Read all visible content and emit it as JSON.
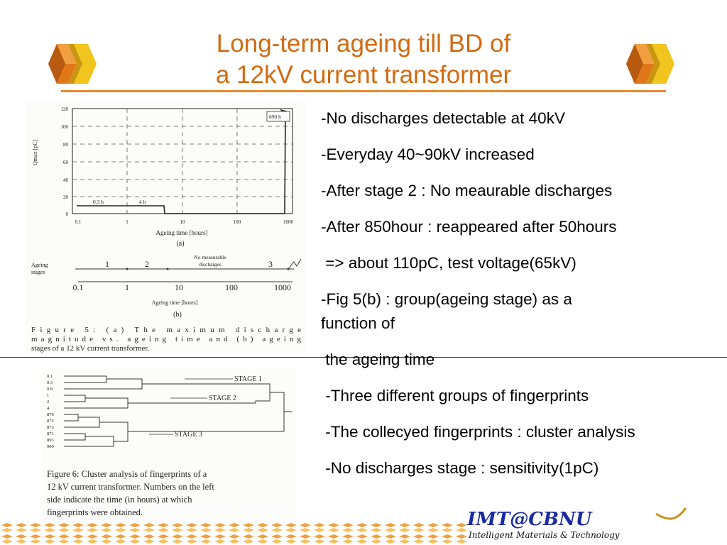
{
  "title": {
    "line1": "Long-term ageing till BD of",
    "line2": "a 12kV current transformer"
  },
  "bullets": [
    "-No discharges detectable at 40kV",
    "-Everyday 40~90kV increased",
    "-After stage 2 : No meaurable discharges",
    "-After 850hour : reappeared after 50hours",
    " => about 110pC, test voltage(65kV)",
    "-Fig 5(b) : group(ageing stage) as a",
    "function of",
    " the ageing time",
    " -Three different groups of fingerprints",
    " -The collecyed fingerprints : cluster analysis",
    " -No discharges stage : sensitivity(1pC)"
  ],
  "figure5": {
    "y_axis_label": "Qmax [pC]",
    "y_ticks": [
      "120",
      "100",
      "80",
      "60",
      "40",
      "20",
      "0"
    ],
    "x_ticks": [
      "0.1",
      "1",
      "10",
      "100",
      "1000"
    ],
    "x_axis_label": "Ageing time  [hours]",
    "panel_a": "(a)",
    "annotation_890h": "890 h",
    "annotation_03h": "0.3 h",
    "annotation_4h": "4 h",
    "stages_label_line1": "Ageing",
    "stages_label_line2": "stages",
    "stage_1": "1",
    "stage_2": "2",
    "stage_3": "3",
    "no_measurable_line1": "No measurable",
    "no_measurable_line2": "discharges",
    "b_ticks": [
      "0.1",
      "1",
      "10",
      "100",
      "1000"
    ],
    "b_axis_label": "Ageing  time  [hours]",
    "panel_b": "(b)",
    "caption_line1": "Figure  5:  (a)  The  maximum  discharge",
    "caption_line2": "magnitude  vs.  ageing  time  and  (b)  ageing",
    "caption_line3": "stages of a 12 kV current transformer."
  },
  "figure6": {
    "leaf_labels": [
      "0.1",
      "0.3",
      "0.8",
      "1",
      "2",
      "4",
      "870",
      "872",
      "873",
      "871",
      "893",
      "900"
    ],
    "stage1": "STAGE 1",
    "stage2": "STAGE 2",
    "stage3": "STAGE 3",
    "caption_line1": "Figure 6: Cluster analysis of fingerprints of a",
    "caption_line2": "12 kV current transformer. Numbers on the left",
    "caption_line3": "side indicate the time (in hours) at which",
    "caption_line4": "fingerprints were obtained."
  },
  "logo": {
    "name": "IMT@CBNU",
    "tagline": "Intelligent Materials & Technology"
  },
  "colors": {
    "title": "#d26a10",
    "rule": "#e88a2a",
    "cube_orange": "#e0781a",
    "cube_yellow": "#f0c020",
    "logo_blue": "#1a2aa0",
    "logo_gold": "#c89020"
  }
}
